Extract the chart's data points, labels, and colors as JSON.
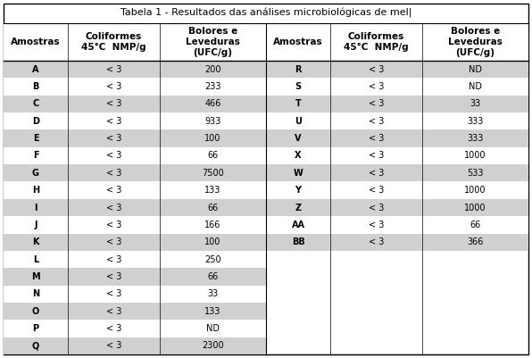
{
  "title": "Tabela 1 - Resultados das análises microbiológicas de mel|",
  "col_headers_left": [
    "Amostras",
    "Coliformes\n45°C  NMP/g",
    "Bolores e\nLeveduras\n(UFC/g)"
  ],
  "col_headers_right": [
    "Amostras",
    "Coliformes\n45°C  NMP/g",
    "Bolores e\nLeveduras\n(UFC/g)"
  ],
  "left_data": [
    [
      "A",
      "< 3",
      "200"
    ],
    [
      "B",
      "< 3",
      "233"
    ],
    [
      "C",
      "< 3",
      "466"
    ],
    [
      "D",
      "< 3",
      "933"
    ],
    [
      "E",
      "< 3",
      "100"
    ],
    [
      "F",
      "< 3",
      "66"
    ],
    [
      "G",
      "< 3",
      "7500"
    ],
    [
      "H",
      "< 3",
      "133"
    ],
    [
      "I",
      "< 3",
      "66"
    ],
    [
      "J",
      "< 3",
      "166"
    ],
    [
      "K",
      "< 3",
      "100"
    ],
    [
      "L",
      "< 3",
      "250"
    ],
    [
      "M",
      "< 3",
      "66"
    ],
    [
      "N",
      "< 3",
      "33"
    ],
    [
      "O",
      "< 3",
      "133"
    ],
    [
      "P",
      "< 3",
      "ND"
    ],
    [
      "Q",
      "< 3",
      "2300"
    ]
  ],
  "right_data": [
    [
      "R",
      "< 3",
      "ND"
    ],
    [
      "S",
      "< 3",
      "ND"
    ],
    [
      "T",
      "< 3",
      "33"
    ],
    [
      "U",
      "< 3",
      "333"
    ],
    [
      "V",
      "< 3",
      "333"
    ],
    [
      "X",
      "< 3",
      "1000"
    ],
    [
      "W",
      "< 3",
      "533"
    ],
    [
      "Y",
      "< 3",
      "1000"
    ],
    [
      "Z",
      "< 3",
      "1000"
    ],
    [
      "AA",
      "< 3",
      "66"
    ],
    [
      "BB",
      "< 3",
      "366"
    ]
  ],
  "bg_color": "#ffffff",
  "stripe_color": "#d0d0d0",
  "border_color": "#000000",
  "text_color": "#000000",
  "font_size": 7.0,
  "title_font_size": 8.0,
  "header_font_size": 7.5
}
